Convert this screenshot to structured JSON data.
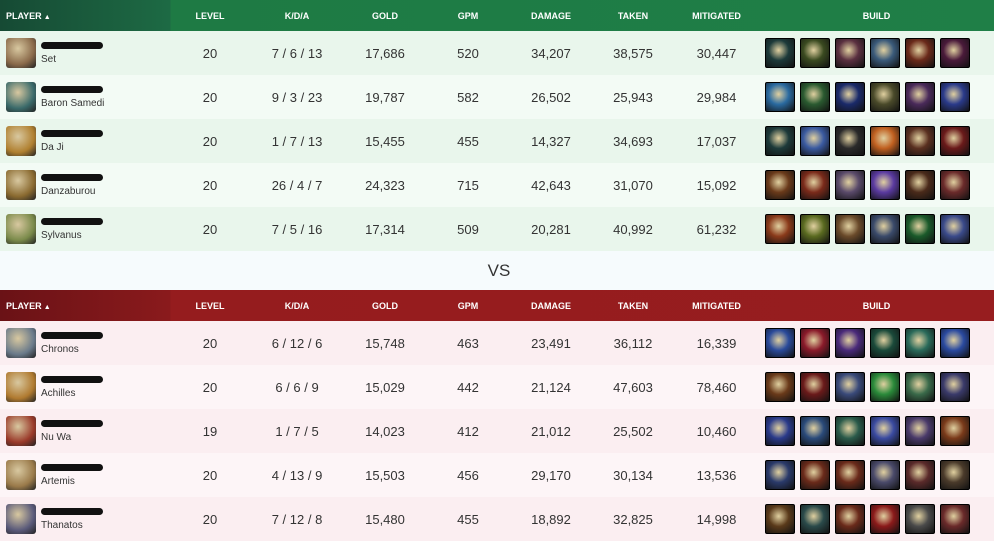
{
  "headers": {
    "player": "PLAYER",
    "sort_icon": "sort-up-icon",
    "level": "LEVEL",
    "kda": "K/D/A",
    "gold": "GOLD",
    "gpm": "GPM",
    "damage": "DAMAGE",
    "taken": "TAKEN",
    "mitigated": "MITIGATED",
    "build": "BUILD"
  },
  "vs_label": "VS",
  "team1": {
    "accent": "#1f7f47",
    "players": [
      {
        "god": "Set",
        "level": "20",
        "kda": "7 / 6 / 13",
        "gold": "17,686",
        "gpm": "520",
        "damage": "34,207",
        "taken": "38,575",
        "mitigated": "30,447",
        "avatar_color": "#8a6a4a",
        "items": [
          "#1d3a3a",
          "#3a4a20",
          "#5a3040",
          "#3a5a7a",
          "#6a2a1a",
          "#4a1a3a"
        ]
      },
      {
        "god": "Baron Samedi",
        "level": "20",
        "kda": "9 / 3 / 23",
        "gold": "19,787",
        "gpm": "582",
        "damage": "26,502",
        "taken": "25,943",
        "mitigated": "29,984",
        "avatar_color": "#3a6a6a",
        "items": [
          "#2a6aa0",
          "#2a5a30",
          "#1a2a6a",
          "#4a4a2a",
          "#4a2a5a",
          "#2a3a8a"
        ]
      },
      {
        "god": "Da Ji",
        "level": "20",
        "kda": "1 / 7 / 13",
        "gold": "15,455",
        "gpm": "455",
        "damage": "14,327",
        "taken": "34,693",
        "mitigated": "17,037",
        "avatar_color": "#b08030",
        "items": [
          "#1d3a3a",
          "#3a5aa0",
          "#2a2a2a",
          "#c06020",
          "#5a3020",
          "#6a1a1a"
        ]
      },
      {
        "god": "Danzaburou",
        "level": "20",
        "kda": "26 / 4 / 7",
        "gold": "24,323",
        "gpm": "715",
        "damage": "42,643",
        "taken": "31,070",
        "mitigated": "15,092",
        "avatar_color": "#8a6a30",
        "items": [
          "#6a3a1a",
          "#7a2a1a",
          "#5a4a6a",
          "#5a3aa0",
          "#4a2a1a",
          "#6a2a2a"
        ]
      },
      {
        "god": "Sylvanus",
        "level": "20",
        "kda": "7 / 5 / 16",
        "gold": "17,314",
        "gpm": "509",
        "damage": "20,281",
        "taken": "40,992",
        "mitigated": "61,232",
        "avatar_color": "#7a8a4a",
        "items": [
          "#8a3a1a",
          "#5a6a20",
          "#6a4a2a",
          "#3a4a6a",
          "#1a5a2a",
          "#3a4a8a"
        ]
      }
    ]
  },
  "team2": {
    "accent": "#971d1f",
    "players": [
      {
        "god": "Chronos",
        "level": "20",
        "kda": "6 / 12 / 6",
        "gold": "15,748",
        "gpm": "463",
        "damage": "23,491",
        "taken": "36,112",
        "mitigated": "16,339",
        "avatar_color": "#6a7a8a",
        "items": [
          "#2a4a9a",
          "#8a1a2a",
          "#4a2a7a",
          "#1a4a3a",
          "#2a6a5a",
          "#2a4aa0"
        ]
      },
      {
        "god": "Achilles",
        "level": "20",
        "kda": "6 / 6 / 9",
        "gold": "15,029",
        "gpm": "442",
        "damage": "21,124",
        "taken": "47,603",
        "mitigated": "78,460",
        "avatar_color": "#b07a30",
        "items": [
          "#6a3a1a",
          "#6a1a1a",
          "#3a4a7a",
          "#2a8a3a",
          "#3a6a4a",
          "#3a3a6a"
        ]
      },
      {
        "god": "Nu Wa",
        "level": "19",
        "kda": "1 / 7 / 5",
        "gold": "14,023",
        "gpm": "412",
        "damage": "21,012",
        "taken": "25,502",
        "mitigated": "10,460",
        "avatar_color": "#9a3a2a",
        "items": [
          "#2a3a8a",
          "#2a4a7a",
          "#2a5a4a",
          "#3a4aa0",
          "#4a3a6a",
          "#7a3a1a"
        ]
      },
      {
        "god": "Artemis",
        "level": "20",
        "kda": "4 / 13 / 9",
        "gold": "15,503",
        "gpm": "456",
        "damage": "29,170",
        "taken": "30,134",
        "mitigated": "13,536",
        "avatar_color": "#9a7a4a",
        "items": [
          "#2a3a6a",
          "#6a2a1a",
          "#6a2a1a",
          "#4a4a6a",
          "#5a2a2a",
          "#4a3a2a"
        ]
      },
      {
        "god": "Thanatos",
        "level": "20",
        "kda": "7 / 12 / 8",
        "gold": "15,480",
        "gpm": "455",
        "damage": "18,892",
        "taken": "32,825",
        "mitigated": "14,998",
        "avatar_color": "#5a5a7a",
        "items": [
          "#5a3a1a",
          "#2a4a4a",
          "#6a2a1a",
          "#8a1a1a",
          "#4a4a4a",
          "#6a2a2a"
        ]
      }
    ]
  }
}
